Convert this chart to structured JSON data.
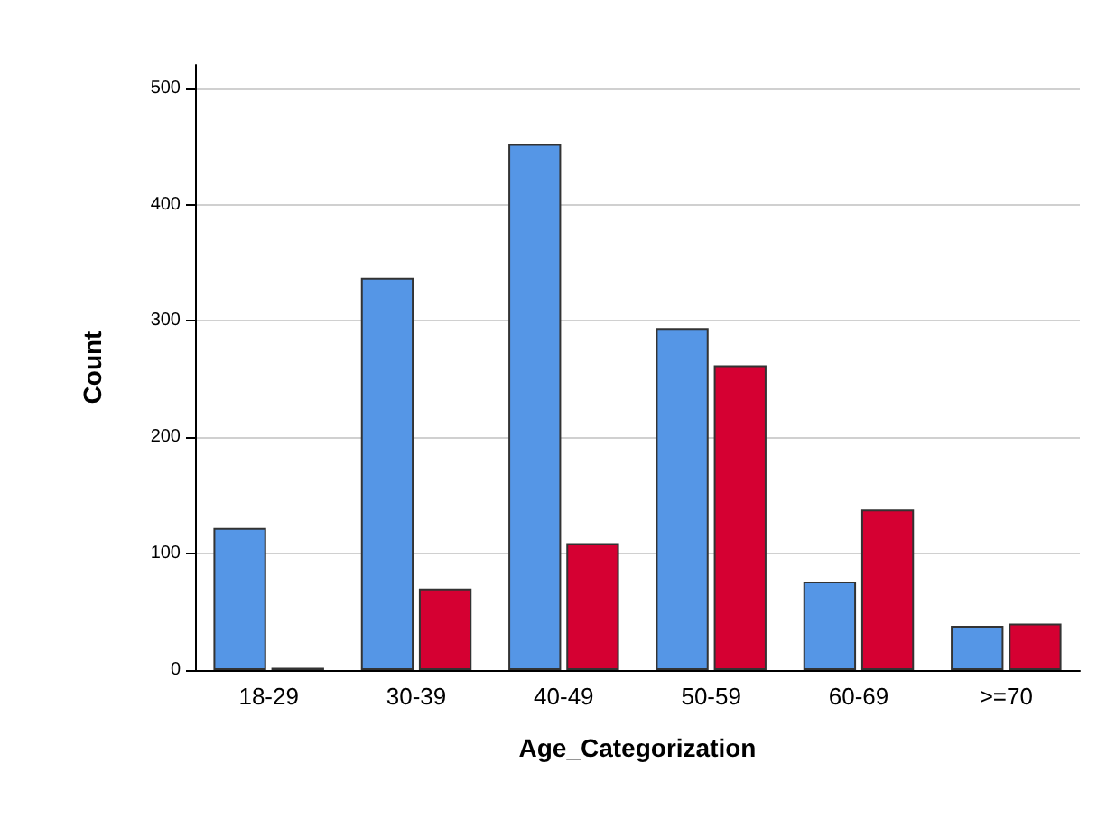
{
  "chart_data": {
    "type": "bar",
    "xlabel": "Age_Categorization",
    "ylabel": "Count",
    "categories": [
      "18-29",
      "30-39",
      "40-49",
      "50-59",
      "60-69",
      ">=70"
    ],
    "series": [
      {
        "color": "#5596e6",
        "values": [
          122,
          337,
          452,
          294,
          76,
          38
        ]
      },
      {
        "color": "#d50032",
        "values": [
          2,
          70,
          109,
          262,
          138,
          40
        ]
      }
    ],
    "ylim": [
      0,
      520
    ],
    "yticks": [
      0,
      100,
      200,
      300,
      400,
      500
    ],
    "grid": "y"
  }
}
